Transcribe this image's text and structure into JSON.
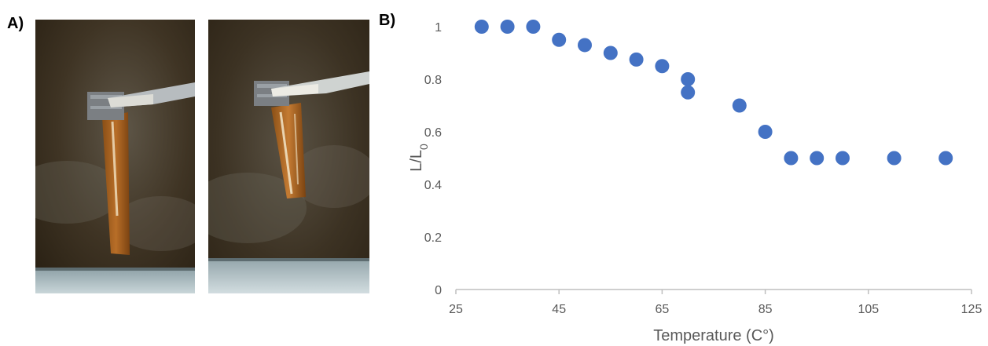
{
  "panels": {
    "a_label": "A)",
    "b_label": "B)"
  },
  "colors": {
    "marker": "#4472c4",
    "axis": "#bfbfbf",
    "text": "#595959"
  },
  "chart_data": {
    "type": "scatter",
    "title": "",
    "xlabel": "Temperature (C°)",
    "ylabel_main": "L/L",
    "ylabel_sub": "0",
    "xlim": [
      25,
      125
    ],
    "ylim": [
      0,
      1
    ],
    "xticks": [
      "25",
      "45",
      "65",
      "85",
      "105",
      "125"
    ],
    "yticks": [
      "0",
      "0.2",
      "0.4",
      "0.6",
      "0.8",
      "1"
    ],
    "grid": false,
    "series": [
      {
        "x": [
          30,
          35,
          40,
          45,
          50,
          55,
          60,
          65,
          70,
          70,
          80,
          85,
          90,
          95,
          100,
          110,
          120
        ],
        "y": [
          1.0,
          1.0,
          1.0,
          0.95,
          0.93,
          0.9,
          0.875,
          0.85,
          0.8,
          0.75,
          0.7,
          0.6,
          0.5,
          0.5,
          0.5,
          0.5,
          0.5
        ]
      }
    ]
  }
}
